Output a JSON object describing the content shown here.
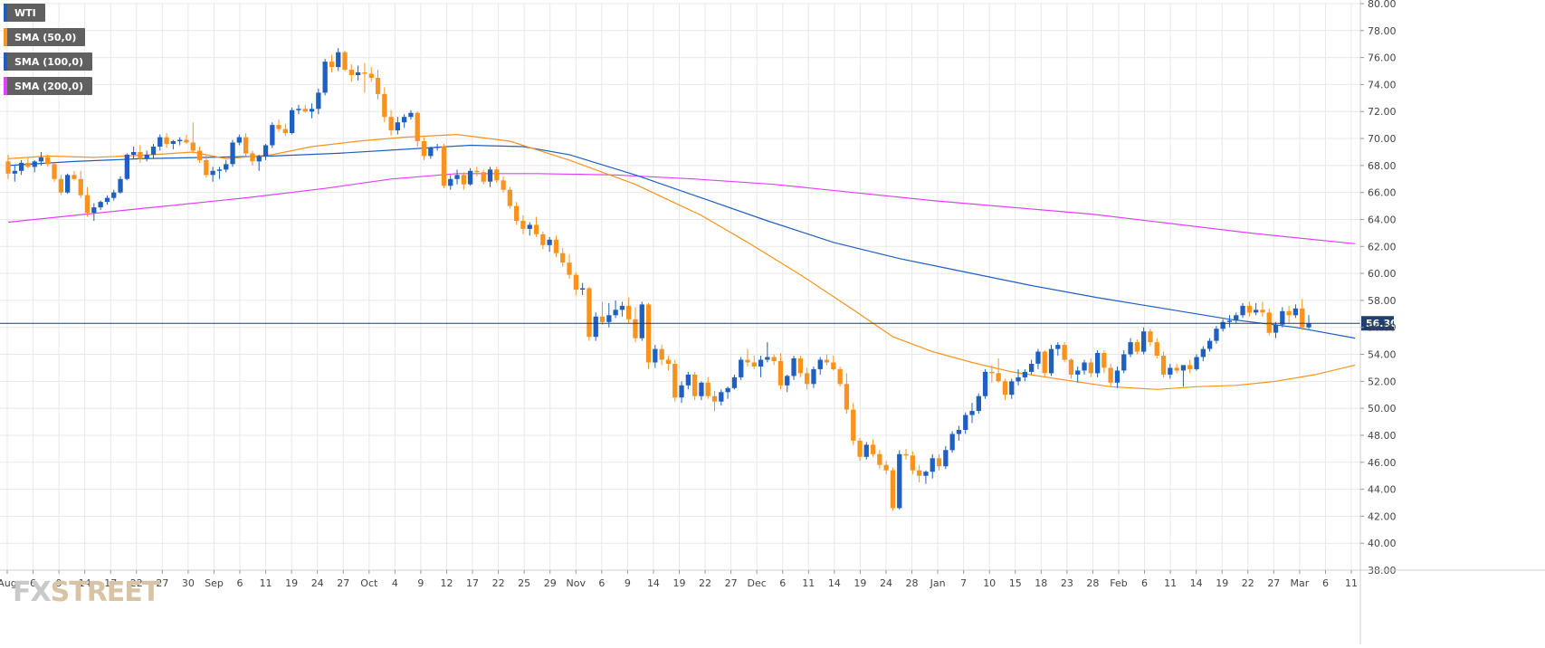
{
  "legend": [
    {
      "label": "WTI",
      "color": "#1f5fbf"
    },
    {
      "label": "SMA (50,0)",
      "color": "#f7931e"
    },
    {
      "label": "SMA (100,0)",
      "color": "#1f5fbf"
    },
    {
      "label": "SMA (200,0)",
      "color": "#e040fb"
    }
  ],
  "logo": {
    "fx": "FX",
    "street": "STREET"
  },
  "colors": {
    "up": "#1f5fbf",
    "down": "#f7931e",
    "sma50": "#f7931e",
    "sma100": "#1f5fbf",
    "sma200": "#e040fb",
    "grid": "#e8e8e8",
    "price_line": "#1f3f6f",
    "price_tag": "#1f3f6f"
  },
  "chart_data": {
    "type": "candlestick",
    "symbol": "WTI",
    "current_price": 56.3,
    "current_price_label": "56.30",
    "y_axis": {
      "min": 38.0,
      "max": 80.0,
      "step": 2.0,
      "position": "right"
    },
    "x_ticks": [
      "Aug",
      "6",
      "9",
      "14",
      "17",
      "22",
      "27",
      "30",
      "Sep",
      "6",
      "11",
      "19",
      "24",
      "27",
      "Oct",
      "4",
      "9",
      "12",
      "17",
      "22",
      "25",
      "29",
      "Nov",
      "6",
      "9",
      "14",
      "19",
      "22",
      "27",
      "Dec",
      "6",
      "11",
      "14",
      "19",
      "24",
      "28",
      "Jan",
      "7",
      "10",
      "15",
      "18",
      "23",
      "28",
      "Feb",
      "6",
      "11",
      "14",
      "19",
      "22",
      "27",
      "Mar",
      "6",
      "11"
    ],
    "legend_placement": "top-left",
    "grid": true,
    "candles": [
      [
        68.3,
        68.8,
        67.0,
        67.4
      ],
      [
        67.4,
        68.0,
        66.8,
        67.6
      ],
      [
        67.6,
        68.4,
        67.3,
        68.2
      ],
      [
        68.2,
        68.6,
        67.8,
        67.9
      ],
      [
        67.9,
        68.4,
        67.5,
        68.3
      ],
      [
        68.3,
        69.0,
        68.0,
        68.6
      ],
      [
        68.6,
        68.8,
        67.9,
        68.1
      ],
      [
        68.1,
        68.2,
        66.8,
        67.0
      ],
      [
        67.0,
        67.3,
        65.8,
        66.0
      ],
      [
        66.0,
        67.4,
        65.9,
        67.3
      ],
      [
        67.3,
        67.6,
        66.9,
        67.0
      ],
      [
        67.0,
        67.6,
        65.6,
        65.8
      ],
      [
        65.8,
        66.4,
        64.2,
        64.5
      ],
      [
        64.5,
        65.2,
        63.9,
        64.9
      ],
      [
        64.9,
        65.4,
        64.7,
        65.3
      ],
      [
        65.3,
        65.8,
        65.1,
        65.6
      ],
      [
        65.6,
        66.2,
        65.4,
        66.0
      ],
      [
        66.0,
        67.2,
        65.9,
        67.0
      ],
      [
        67.0,
        68.9,
        66.9,
        68.8
      ],
      [
        68.8,
        69.4,
        68.5,
        69.0
      ],
      [
        69.0,
        69.5,
        68.2,
        68.5
      ],
      [
        68.5,
        69.1,
        68.3,
        68.8
      ],
      [
        68.8,
        69.6,
        68.5,
        69.4
      ],
      [
        69.4,
        70.3,
        69.1,
        70.1
      ],
      [
        70.1,
        70.4,
        69.3,
        69.6
      ],
      [
        69.6,
        69.9,
        69.2,
        69.8
      ],
      [
        69.8,
        70.1,
        69.5,
        69.9
      ],
      [
        69.9,
        70.3,
        69.6,
        69.7
      ],
      [
        69.7,
        71.2,
        68.9,
        69.1
      ],
      [
        69.1,
        69.4,
        68.2,
        68.4
      ],
      [
        68.4,
        68.8,
        67.1,
        67.3
      ],
      [
        67.3,
        67.9,
        66.8,
        67.6
      ],
      [
        67.6,
        67.9,
        67.0,
        67.7
      ],
      [
        67.7,
        68.4,
        67.5,
        68.1
      ],
      [
        68.1,
        69.9,
        67.9,
        69.7
      ],
      [
        69.7,
        70.3,
        69.5,
        70.1
      ],
      [
        70.1,
        70.4,
        68.6,
        68.9
      ],
      [
        68.9,
        69.1,
        68.0,
        68.3
      ],
      [
        68.3,
        68.8,
        67.6,
        68.7
      ],
      [
        68.7,
        69.6,
        68.4,
        69.5
      ],
      [
        69.5,
        71.2,
        69.3,
        71.0
      ],
      [
        71.0,
        71.4,
        70.5,
        70.7
      ],
      [
        70.7,
        71.1,
        70.2,
        70.4
      ],
      [
        70.4,
        72.3,
        70.3,
        72.1
      ],
      [
        72.1,
        72.5,
        71.8,
        72.2
      ],
      [
        72.2,
        72.5,
        71.9,
        72.0
      ],
      [
        72.0,
        72.6,
        71.5,
        72.2
      ],
      [
        72.2,
        73.7,
        71.8,
        73.4
      ],
      [
        73.4,
        75.9,
        73.2,
        75.7
      ],
      [
        75.7,
        76.2,
        74.9,
        75.3
      ],
      [
        75.3,
        76.7,
        75.0,
        76.4
      ],
      [
        76.4,
        76.5,
        75.0,
        75.1
      ],
      [
        75.1,
        75.5,
        74.2,
        74.7
      ],
      [
        74.7,
        75.4,
        74.3,
        74.9
      ],
      [
        74.9,
        75.6,
        73.4,
        74.8
      ],
      [
        74.8,
        75.3,
        74.2,
        74.5
      ],
      [
        74.5,
        75.1,
        72.9,
        73.3
      ],
      [
        73.3,
        73.8,
        71.2,
        71.6
      ],
      [
        71.6,
        72.1,
        70.2,
        70.6
      ],
      [
        70.6,
        71.6,
        70.3,
        71.2
      ],
      [
        71.2,
        71.8,
        70.8,
        71.6
      ],
      [
        71.6,
        72.1,
        71.4,
        71.9
      ],
      [
        71.9,
        72.0,
        69.4,
        69.8
      ],
      [
        69.8,
        70.1,
        68.4,
        68.7
      ],
      [
        68.7,
        69.4,
        68.5,
        69.3
      ],
      [
        69.3,
        69.6,
        69.1,
        69.4
      ],
      [
        69.4,
        69.6,
        66.3,
        66.5
      ],
      [
        66.5,
        67.3,
        66.2,
        67.0
      ],
      [
        67.0,
        67.7,
        66.6,
        67.3
      ],
      [
        67.3,
        67.5,
        66.2,
        66.6
      ],
      [
        66.6,
        67.8,
        66.5,
        67.6
      ],
      [
        67.6,
        67.9,
        67.2,
        67.5
      ],
      [
        67.5,
        67.7,
        66.6,
        66.8
      ],
      [
        66.8,
        67.9,
        66.4,
        67.7
      ],
      [
        67.7,
        67.9,
        66.7,
        66.9
      ],
      [
        66.9,
        67.2,
        66.0,
        66.2
      ],
      [
        66.2,
        66.4,
        64.8,
        65.0
      ],
      [
        65.0,
        65.3,
        63.6,
        63.9
      ],
      [
        63.9,
        64.3,
        62.9,
        63.3
      ],
      [
        63.3,
        63.8,
        62.8,
        63.6
      ],
      [
        63.6,
        64.2,
        62.7,
        62.9
      ],
      [
        62.9,
        63.1,
        61.8,
        62.1
      ],
      [
        62.1,
        62.7,
        61.6,
        62.5
      ],
      [
        62.5,
        62.8,
        61.2,
        61.5
      ],
      [
        61.5,
        61.9,
        60.5,
        60.8
      ],
      [
        60.8,
        61.4,
        59.6,
        59.9
      ],
      [
        59.9,
        60.1,
        58.4,
        58.8
      ],
      [
        58.8,
        59.3,
        58.4,
        58.9
      ],
      [
        58.9,
        59.0,
        55.0,
        55.3
      ],
      [
        55.3,
        57.1,
        55.0,
        56.8
      ],
      [
        56.8,
        57.9,
        56.2,
        56.4
      ],
      [
        56.4,
        57.8,
        56.0,
        56.9
      ],
      [
        56.9,
        58.0,
        56.7,
        57.3
      ],
      [
        57.3,
        57.9,
        56.8,
        57.6
      ],
      [
        57.6,
        58.2,
        56.3,
        56.6
      ],
      [
        56.6,
        57.5,
        54.9,
        55.2
      ],
      [
        55.2,
        57.9,
        55.0,
        57.7
      ],
      [
        57.7,
        57.8,
        52.9,
        53.4
      ],
      [
        53.4,
        54.7,
        53.0,
        54.4
      ],
      [
        54.4,
        54.7,
        53.2,
        53.6
      ],
      [
        53.6,
        53.9,
        52.8,
        53.3
      ],
      [
        53.3,
        53.6,
        50.5,
        50.8
      ],
      [
        50.8,
        52.0,
        50.4,
        51.7
      ],
      [
        51.7,
        52.7,
        51.4,
        52.5
      ],
      [
        52.5,
        52.7,
        50.6,
        50.9
      ],
      [
        50.9,
        52.0,
        50.6,
        51.9
      ],
      [
        51.9,
        52.3,
        50.7,
        50.9
      ],
      [
        50.9,
        51.3,
        49.8,
        50.5
      ],
      [
        50.5,
        51.4,
        50.2,
        51.2
      ],
      [
        51.2,
        51.6,
        50.7,
        51.5
      ],
      [
        51.5,
        52.5,
        51.4,
        52.3
      ],
      [
        52.3,
        53.8,
        52.1,
        53.6
      ],
      [
        53.6,
        54.4,
        53.1,
        53.4
      ],
      [
        53.4,
        53.9,
        52.9,
        53.1
      ],
      [
        53.1,
        53.9,
        52.3,
        53.6
      ],
      [
        53.6,
        54.9,
        53.4,
        53.8
      ],
      [
        53.8,
        54.0,
        53.2,
        53.5
      ],
      [
        53.5,
        54.1,
        51.4,
        51.7
      ],
      [
        51.7,
        52.5,
        51.2,
        52.4
      ],
      [
        52.4,
        53.9,
        52.1,
        53.7
      ],
      [
        53.7,
        53.9,
        52.3,
        52.6
      ],
      [
        52.6,
        53.0,
        51.4,
        51.8
      ],
      [
        51.8,
        53.1,
        51.5,
        52.9
      ],
      [
        52.9,
        53.8,
        52.5,
        53.6
      ],
      [
        53.6,
        54.0,
        53.2,
        53.4
      ],
      [
        53.4,
        53.9,
        52.8,
        52.9
      ],
      [
        52.9,
        53.1,
        51.6,
        51.8
      ],
      [
        51.8,
        52.6,
        49.6,
        49.9
      ],
      [
        49.9,
        50.4,
        47.3,
        47.6
      ],
      [
        47.6,
        47.8,
        46.1,
        46.4
      ],
      [
        46.4,
        47.5,
        46.2,
        47.3
      ],
      [
        47.3,
        47.7,
        46.4,
        46.6
      ],
      [
        46.6,
        46.9,
        45.5,
        45.8
      ],
      [
        45.8,
        46.1,
        45.1,
        45.4
      ],
      [
        45.4,
        45.6,
        42.4,
        42.6
      ],
      [
        42.6,
        46.9,
        42.5,
        46.6
      ],
      [
        46.6,
        47.0,
        46.2,
        46.5
      ],
      [
        46.5,
        46.8,
        45.1,
        45.4
      ],
      [
        45.4,
        45.8,
        44.5,
        45.0
      ],
      [
        45.0,
        45.4,
        44.4,
        45.3
      ],
      [
        45.3,
        46.6,
        44.8,
        46.3
      ],
      [
        46.3,
        46.6,
        45.4,
        45.7
      ],
      [
        45.7,
        47.2,
        45.5,
        46.9
      ],
      [
        46.9,
        48.3,
        46.7,
        48.1
      ],
      [
        48.1,
        48.7,
        47.6,
        48.4
      ],
      [
        48.4,
        49.7,
        48.1,
        49.5
      ],
      [
        49.5,
        50.4,
        48.9,
        49.8
      ],
      [
        49.8,
        51.1,
        49.6,
        50.9
      ],
      [
        50.9,
        52.9,
        50.7,
        52.7
      ],
      [
        52.7,
        53.2,
        51.9,
        52.6
      ],
      [
        52.6,
        53.7,
        51.9,
        52.0
      ],
      [
        52.0,
        52.2,
        50.6,
        51.0
      ],
      [
        51.0,
        52.2,
        50.7,
        52.0
      ],
      [
        52.0,
        52.9,
        51.7,
        52.3
      ],
      [
        52.3,
        52.9,
        52.0,
        52.7
      ],
      [
        52.7,
        53.6,
        52.5,
        53.3
      ],
      [
        53.3,
        54.4,
        52.9,
        54.2
      ],
      [
        54.2,
        54.3,
        52.3,
        52.6
      ],
      [
        52.6,
        54.7,
        52.4,
        54.4
      ],
      [
        54.4,
        54.9,
        53.9,
        54.7
      ],
      [
        54.7,
        54.9,
        53.4,
        53.6
      ],
      [
        53.6,
        53.7,
        52.2,
        52.5
      ],
      [
        52.5,
        53.1,
        51.9,
        52.8
      ],
      [
        52.8,
        53.6,
        52.5,
        53.4
      ],
      [
        53.4,
        53.7,
        52.3,
        52.6
      ],
      [
        52.6,
        54.3,
        52.3,
        54.1
      ],
      [
        54.1,
        54.3,
        52.6,
        53.0
      ],
      [
        53.0,
        53.3,
        51.6,
        51.9
      ],
      [
        51.9,
        53.1,
        51.5,
        52.8
      ],
      [
        52.8,
        54.3,
        52.6,
        54.0
      ],
      [
        54.0,
        55.2,
        53.8,
        54.9
      ],
      [
        54.9,
        55.1,
        54.0,
        54.2
      ],
      [
        54.2,
        56.0,
        54.0,
        55.7
      ],
      [
        55.7,
        55.9,
        54.6,
        54.9
      ],
      [
        54.9,
        55.2,
        53.7,
        53.9
      ],
      [
        53.9,
        54.2,
        52.3,
        52.5
      ],
      [
        52.5,
        53.3,
        52.2,
        53.0
      ],
      [
        53.0,
        53.3,
        52.6,
        52.8
      ],
      [
        52.8,
        53.1,
        51.6,
        53.2
      ],
      [
        53.2,
        53.6,
        52.6,
        52.9
      ],
      [
        52.9,
        54.0,
        52.8,
        53.8
      ],
      [
        53.8,
        54.6,
        53.5,
        54.4
      ],
      [
        54.4,
        55.2,
        54.2,
        55.0
      ],
      [
        55.0,
        56.1,
        54.8,
        55.9
      ],
      [
        55.9,
        56.6,
        55.7,
        56.4
      ],
      [
        56.4,
        56.9,
        56.0,
        56.5
      ],
      [
        56.5,
        57.1,
        56.3,
        56.9
      ],
      [
        56.9,
        57.8,
        56.7,
        57.6
      ],
      [
        57.6,
        57.9,
        56.8,
        57.1
      ],
      [
        57.1,
        57.8,
        56.9,
        57.3
      ],
      [
        57.3,
        57.9,
        56.8,
        57.1
      ],
      [
        57.1,
        57.4,
        55.4,
        55.6
      ],
      [
        55.6,
        56.4,
        55.2,
        56.2
      ],
      [
        56.2,
        57.5,
        56.0,
        57.2
      ],
      [
        57.2,
        57.6,
        56.3,
        56.9
      ],
      [
        56.9,
        57.7,
        56.7,
        57.4
      ],
      [
        57.4,
        58.1,
        55.8,
        56.0
      ],
      [
        56.0,
        56.9,
        55.9,
        56.3
      ]
    ],
    "sma50": [
      [
        0,
        68.5
      ],
      [
        6,
        68.7
      ],
      [
        13,
        68.6
      ],
      [
        22,
        68.8
      ],
      [
        28,
        69.0
      ],
      [
        33,
        68.5
      ],
      [
        40,
        68.8
      ],
      [
        46,
        69.4
      ],
      [
        53,
        69.8
      ],
      [
        60,
        70.1
      ],
      [
        68,
        70.3
      ],
      [
        76,
        69.8
      ],
      [
        85,
        68.4
      ],
      [
        95,
        66.6
      ],
      [
        105,
        64.3
      ],
      [
        112,
        62.3
      ],
      [
        120,
        59.9
      ],
      [
        128,
        57.3
      ],
      [
        134,
        55.3
      ],
      [
        140,
        54.2
      ],
      [
        146,
        53.4
      ],
      [
        152,
        52.7
      ],
      [
        160,
        52.1
      ],
      [
        167,
        51.6
      ],
      [
        174,
        51.4
      ],
      [
        180,
        51.6
      ],
      [
        186,
        51.7
      ],
      [
        192,
        52.0
      ],
      [
        198,
        52.5
      ],
      [
        204,
        53.2
      ]
    ],
    "sma100": [
      [
        0,
        68.0
      ],
      [
        10,
        68.3
      ],
      [
        20,
        68.5
      ],
      [
        30,
        68.6
      ],
      [
        40,
        68.7
      ],
      [
        50,
        68.9
      ],
      [
        60,
        69.2
      ],
      [
        70,
        69.5
      ],
      [
        78,
        69.4
      ],
      [
        85,
        68.8
      ],
      [
        95,
        67.3
      ],
      [
        105,
        65.6
      ],
      [
        115,
        63.9
      ],
      [
        125,
        62.3
      ],
      [
        135,
        61.1
      ],
      [
        145,
        60.1
      ],
      [
        155,
        59.1
      ],
      [
        165,
        58.2
      ],
      [
        175,
        57.4
      ],
      [
        185,
        56.6
      ],
      [
        195,
        56.0
      ],
      [
        204,
        55.2
      ]
    ],
    "sma200": [
      [
        0,
        63.8
      ],
      [
        12,
        64.4
      ],
      [
        24,
        65.0
      ],
      [
        36,
        65.6
      ],
      [
        48,
        66.3
      ],
      [
        58,
        67.0
      ],
      [
        68,
        67.4
      ],
      [
        80,
        67.4
      ],
      [
        92,
        67.3
      ],
      [
        104,
        67.0
      ],
      [
        116,
        66.6
      ],
      [
        128,
        66.0
      ],
      [
        140,
        65.4
      ],
      [
        152,
        64.9
      ],
      [
        164,
        64.4
      ],
      [
        176,
        63.7
      ],
      [
        188,
        63.0
      ],
      [
        204,
        62.2
      ]
    ]
  }
}
